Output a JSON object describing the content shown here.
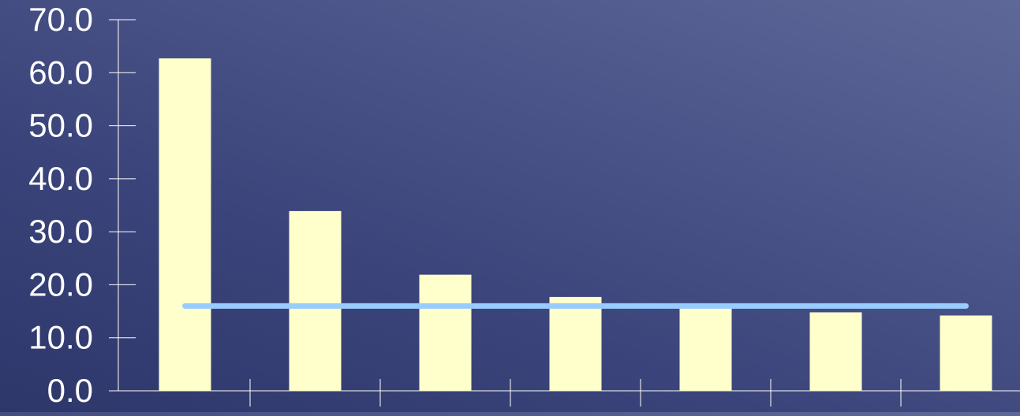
{
  "chart_data": {
    "type": "bar",
    "title": "",
    "xlabel": "",
    "ylabel": "",
    "categories": [
      "",
      "",
      "",
      "",
      "",
      "",
      ""
    ],
    "series": [
      {
        "type": "bar",
        "values": [
          62.7,
          33.9,
          21.9,
          17.7,
          15.8,
          14.8,
          14.2
        ],
        "color": "#ffffcc"
      },
      {
        "type": "line",
        "values": [
          16.0,
          16.0,
          16.0,
          16.0,
          16.0,
          16.0,
          16.0
        ],
        "color": "#99ccff"
      }
    ],
    "ylim": [
      0,
      70
    ],
    "yticks": [
      "0.0",
      "10.0",
      "20.0",
      "30.0",
      "40.0",
      "50.0",
      "60.0",
      "70.0"
    ],
    "grid": false,
    "legend": "none"
  },
  "colors": {
    "axis": "#ffffff",
    "tick_label": "#ffffff"
  }
}
